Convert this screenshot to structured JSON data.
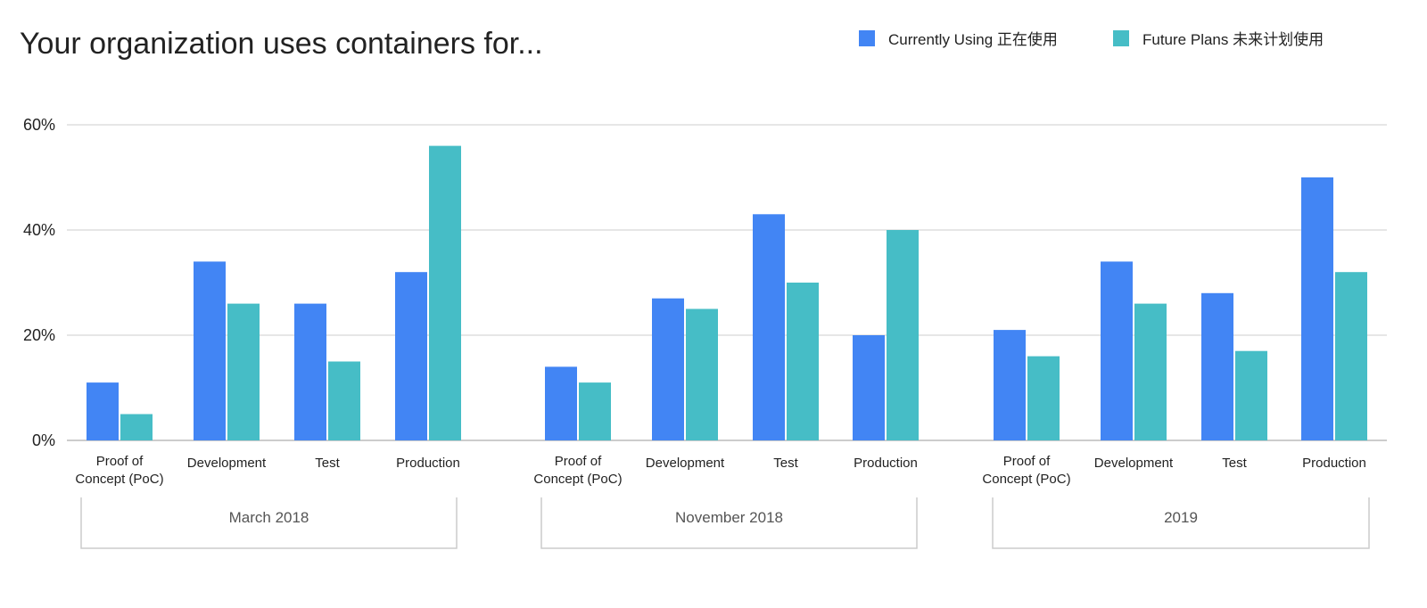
{
  "chart_data": {
    "type": "bar",
    "title": "Your organization uses containers for...",
    "ylim": [
      0,
      60
    ],
    "yticks": [
      "0%",
      "20%",
      "40%",
      "60%"
    ],
    "ytick_values": [
      0,
      20,
      40,
      60
    ],
    "grid": true,
    "legend_position": "top-right",
    "groups": [
      "March 2018",
      "November 2018",
      "2019"
    ],
    "categories": [
      "Proof of Concept (PoC)",
      "Development",
      "Test",
      "Production"
    ],
    "category_lines": [
      [
        "Proof of",
        "Concept (PoC)"
      ],
      [
        "Development"
      ],
      [
        "Test"
      ],
      [
        "Production"
      ]
    ],
    "series": [
      {
        "name": "Currently Using 正在使用",
        "color": "#4285f4",
        "values": [
          [
            11,
            34,
            26,
            32
          ],
          [
            14,
            27,
            43,
            20
          ],
          [
            21,
            34,
            28,
            50
          ]
        ]
      },
      {
        "name": "Future Plans 未来计划使用",
        "color": "#46bdc6",
        "values": [
          [
            5,
            26,
            15,
            56
          ],
          [
            11,
            25,
            30,
            40
          ],
          [
            16,
            26,
            17,
            32
          ]
        ]
      }
    ]
  }
}
